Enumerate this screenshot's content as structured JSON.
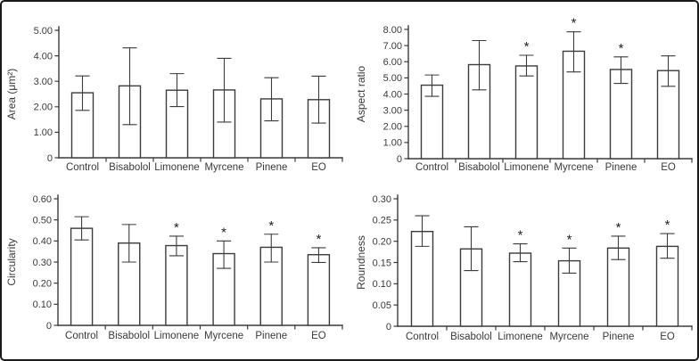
{
  "figure": {
    "background": "#ffffff",
    "border_color": "#1a1a1a",
    "axis_color": "#3c3c3c",
    "bar_fill": "#ffffff",
    "bar_stroke": "#3c3c3c",
    "text_color": "#3a3a3a",
    "significance_marker": "*"
  },
  "chart_data": [
    {
      "id": "area",
      "type": "bar",
      "title": "",
      "xlabel": "",
      "ylabel": "Area (μm²)",
      "categories": [
        "Control",
        "Bisabolol",
        "Limonene",
        "Myrcene",
        "Pinene",
        "EO"
      ],
      "values": [
        2.55,
        2.82,
        2.65,
        2.66,
        2.31,
        2.28
      ],
      "error_low": [
        1.86,
        1.3,
        2.01,
        1.4,
        1.45,
        1.36
      ],
      "error_high": [
        3.21,
        4.31,
        3.3,
        3.9,
        3.14,
        3.2
      ],
      "significant": [
        false,
        false,
        false,
        false,
        false,
        false
      ],
      "ylim": [
        0,
        5
      ],
      "yticks": [
        0,
        1,
        2,
        3,
        4,
        5
      ],
      "ytick_labels": [
        "0",
        "1.00",
        "2.00",
        "3.00",
        "4.00",
        "5.00"
      ],
      "grid": false,
      "legend": null
    },
    {
      "id": "aspect-ratio",
      "type": "bar",
      "title": "",
      "xlabel": "",
      "ylabel": "Aspect ratio",
      "categories": [
        "Control",
        "Bisabolol",
        "Limonene",
        "Myrcene",
        "Pinene",
        "EO"
      ],
      "values": [
        4.55,
        5.82,
        5.74,
        6.65,
        5.52,
        5.45
      ],
      "error_low": [
        3.86,
        4.26,
        5.12,
        5.37,
        4.66,
        4.48
      ],
      "error_high": [
        5.18,
        7.31,
        6.4,
        7.85,
        6.3,
        6.36
      ],
      "significant": [
        false,
        false,
        true,
        true,
        true,
        false
      ],
      "ylim": [
        0,
        8
      ],
      "yticks": [
        0,
        1,
        2,
        3,
        4,
        5,
        6,
        7,
        8
      ],
      "ytick_labels": [
        "0",
        "1.00",
        "2.00",
        "3.00",
        "4.00",
        "5.00",
        "6.00",
        "7.00",
        "8.00"
      ],
      "grid": false,
      "legend": null
    },
    {
      "id": "circularity",
      "type": "bar",
      "title": "",
      "xlabel": "",
      "ylabel": "Circularity",
      "categories": [
        "Control",
        "Bisabolol",
        "Limonene",
        "Myrcene",
        "Pinene",
        "EO"
      ],
      "values": [
        0.46,
        0.39,
        0.378,
        0.34,
        0.37,
        0.335
      ],
      "error_low": [
        0.405,
        0.3,
        0.33,
        0.27,
        0.3,
        0.298
      ],
      "error_high": [
        0.515,
        0.478,
        0.423,
        0.4,
        0.432,
        0.368
      ],
      "significant": [
        false,
        false,
        true,
        true,
        true,
        true
      ],
      "ylim": [
        0,
        0.6
      ],
      "yticks": [
        0,
        0.1,
        0.2,
        0.3,
        0.4,
        0.5,
        0.6
      ],
      "ytick_labels": [
        "0",
        "0.10",
        "0.20",
        "0.30",
        "0.40",
        "0.50",
        "0.60"
      ],
      "grid": false,
      "legend": null
    },
    {
      "id": "roundness",
      "type": "bar",
      "title": "",
      "xlabel": "",
      "ylabel": "Roundness",
      "categories": [
        "Control",
        "Bisabolol",
        "Limonene",
        "Myrcene",
        "Pinene",
        "EO"
      ],
      "values": [
        0.223,
        0.182,
        0.172,
        0.154,
        0.184,
        0.188
      ],
      "error_low": [
        0.188,
        0.131,
        0.152,
        0.125,
        0.157,
        0.16
      ],
      "error_high": [
        0.26,
        0.234,
        0.194,
        0.184,
        0.212,
        0.218
      ],
      "significant": [
        false,
        false,
        true,
        true,
        true,
        true
      ],
      "ylim": [
        0,
        0.3
      ],
      "yticks": [
        0,
        0.05,
        0.1,
        0.15,
        0.2,
        0.25,
        0.3
      ],
      "ytick_labels": [
        "0",
        "0.05",
        "0.10",
        "0.15",
        "0.20",
        "0.25",
        "0.30"
      ],
      "grid": false,
      "legend": null
    }
  ]
}
